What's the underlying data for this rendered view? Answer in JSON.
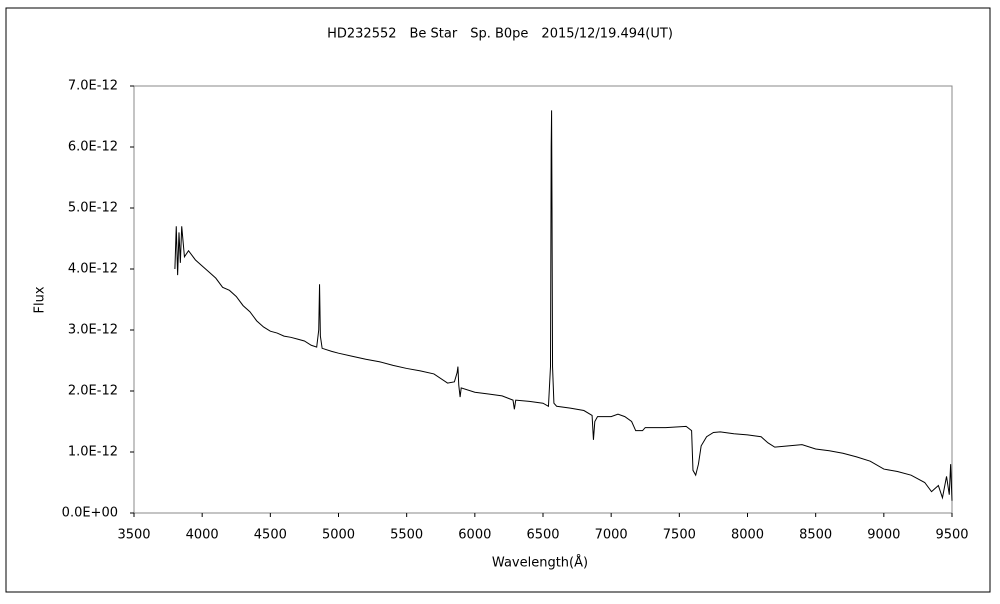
{
  "chart_data": {
    "type": "line",
    "title": "HD232552　Be Star　Sp. B0pe　2015/12/19.494(UT)",
    "x_label": "Wavelength(Å)",
    "y_label": "Flux",
    "color": "#000000",
    "x": [
      3800,
      3810,
      3820,
      3830,
      3840,
      3850,
      3870,
      3900,
      3950,
      4000,
      4050,
      4100,
      4150,
      4200,
      4250,
      4300,
      4350,
      4400,
      4450,
      4500,
      4550,
      4600,
      4650,
      4700,
      4750,
      4800,
      4840,
      4855,
      4861,
      4867,
      4880,
      4950,
      5000,
      5100,
      5200,
      5300,
      5400,
      5500,
      5600,
      5700,
      5800,
      5850,
      5870,
      5876,
      5882,
      5892,
      5900,
      6000,
      6100,
      6200,
      6280,
      6290,
      6300,
      6400,
      6500,
      6540,
      6555,
      6560,
      6563,
      6566,
      6570,
      6580,
      6600,
      6700,
      6800,
      6860,
      6870,
      6880,
      6900,
      7000,
      7050,
      7100,
      7150,
      7180,
      7230,
      7250,
      7400,
      7550,
      7590,
      7600,
      7620,
      7640,
      7660,
      7700,
      7750,
      7800,
      7900,
      8000,
      8100,
      8150,
      8200,
      8300,
      8400,
      8500,
      8600,
      8700,
      8800,
      8900,
      9000,
      9100,
      9200,
      9300,
      9350,
      9400,
      9430,
      9460,
      9480,
      9490,
      9500
    ],
    "values": [
      4e-12,
      4.7e-12,
      3.9e-12,
      4.6e-12,
      4.1e-12,
      4.7e-12,
      4.2e-12,
      4.3e-12,
      4.15e-12,
      4.05e-12,
      3.95e-12,
      3.85e-12,
      3.7e-12,
      3.65e-12,
      3.55e-12,
      3.4e-12,
      3.3e-12,
      3.15e-12,
      3.05e-12,
      2.98e-12,
      2.95e-12,
      2.9e-12,
      2.88e-12,
      2.85e-12,
      2.82e-12,
      2.75e-12,
      2.72e-12,
      3e-12,
      3.75e-12,
      2.9e-12,
      2.7e-12,
      2.65e-12,
      2.62e-12,
      2.57e-12,
      2.52e-12,
      2.48e-12,
      2.42e-12,
      2.37e-12,
      2.33e-12,
      2.28e-12,
      2.13e-12,
      2.15e-12,
      2.3e-12,
      2.4e-12,
      2.1e-12,
      1.9e-12,
      2.05e-12,
      1.98e-12,
      1.95e-12,
      1.92e-12,
      1.85e-12,
      1.7e-12,
      1.85e-12,
      1.83e-12,
      1.8e-12,
      1.75e-12,
      2.4e-12,
      6e-12,
      6.6e-12,
      5e-12,
      2.4e-12,
      1.8e-12,
      1.75e-12,
      1.72e-12,
      1.68e-12,
      1.6e-12,
      1.2e-12,
      1.5e-12,
      1.58e-12,
      1.58e-12,
      1.62e-12,
      1.58e-12,
      1.5e-12,
      1.35e-12,
      1.35e-12,
      1.4e-12,
      1.4e-12,
      1.42e-12,
      1.35e-12,
      7e-13,
      6.2e-13,
      8e-13,
      1.1e-12,
      1.25e-12,
      1.32e-12,
      1.33e-12,
      1.3e-12,
      1.28e-12,
      1.25e-12,
      1.15e-12,
      1.08e-12,
      1.1e-12,
      1.12e-12,
      1.05e-12,
      1.02e-12,
      9.8e-13,
      9.2e-13,
      8.5e-13,
      7.2e-13,
      6.8e-13,
      6.2e-13,
      5e-13,
      3.5e-13,
      4.5e-13,
      2.5e-13,
      6e-13,
      3e-13,
      8e-13,
      2e-13
    ],
    "xlim": [
      3500,
      9500
    ],
    "xticks": [
      3500,
      4000,
      4500,
      5000,
      5500,
      6000,
      6500,
      7000,
      7500,
      8000,
      8500,
      9000,
      9500
    ],
    "ylim": [
      0,
      7e-12
    ],
    "yticks": [
      {
        "value": 0,
        "label": "0.0E+00"
      },
      {
        "value": 1e-12,
        "label": "1.0E-12"
      },
      {
        "value": 2e-12,
        "label": "2.0E-12"
      },
      {
        "value": 3e-12,
        "label": "3.0E-12"
      },
      {
        "value": 4e-12,
        "label": "4.0E-12"
      },
      {
        "value": 5e-12,
        "label": "5.0E-12"
      },
      {
        "value": 6e-12,
        "label": "6.0E-12"
      },
      {
        "value": 7e-12,
        "label": "7.0E-12"
      }
    ]
  }
}
